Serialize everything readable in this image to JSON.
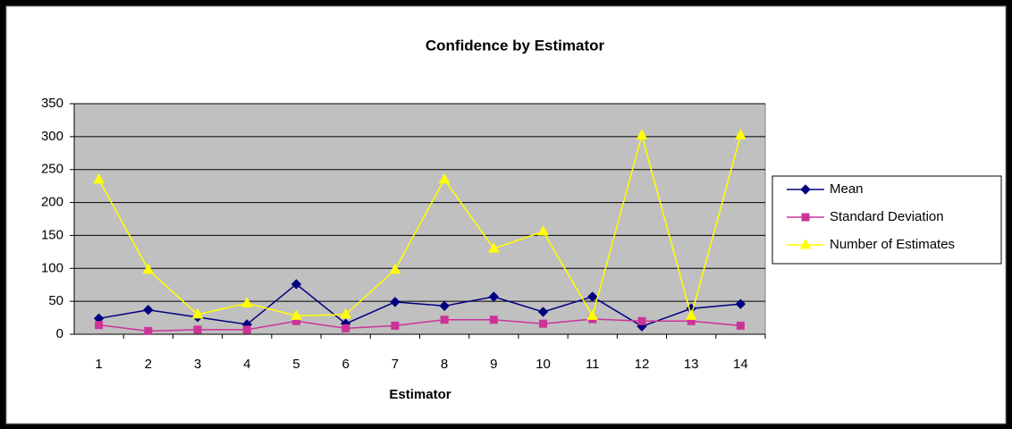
{
  "chart_data": {
    "type": "line",
    "title": "Confidence by Estimator",
    "x_label": "Estimator",
    "categories": [
      "1",
      "2",
      "3",
      "4",
      "5",
      "6",
      "7",
      "8",
      "9",
      "10",
      "11",
      "12",
      "13",
      "14"
    ],
    "series": [
      {
        "name": "Mean",
        "color": "#000080",
        "marker": "diamond",
        "values": [
          24,
          37,
          26,
          15,
          76,
          16,
          49,
          43,
          57,
          34,
          57,
          12,
          39,
          46
        ]
      },
      {
        "name": "Standard Deviation",
        "color": "#cc3399",
        "marker": "square",
        "values": [
          14,
          5,
          7,
          7,
          20,
          9,
          13,
          22,
          22,
          16,
          23,
          20,
          20,
          13
        ]
      },
      {
        "name": "Number of Estimates",
        "color": "#ffff00",
        "marker": "triangle",
        "values": [
          235,
          98,
          30,
          47,
          28,
          30,
          98,
          235,
          130,
          156,
          28,
          302,
          28,
          302
        ]
      }
    ],
    "ylim": [
      0,
      350
    ],
    "yticks": [
      0,
      50,
      100,
      150,
      200,
      250,
      300,
      350
    ],
    "grid": true,
    "legend": "right"
  }
}
